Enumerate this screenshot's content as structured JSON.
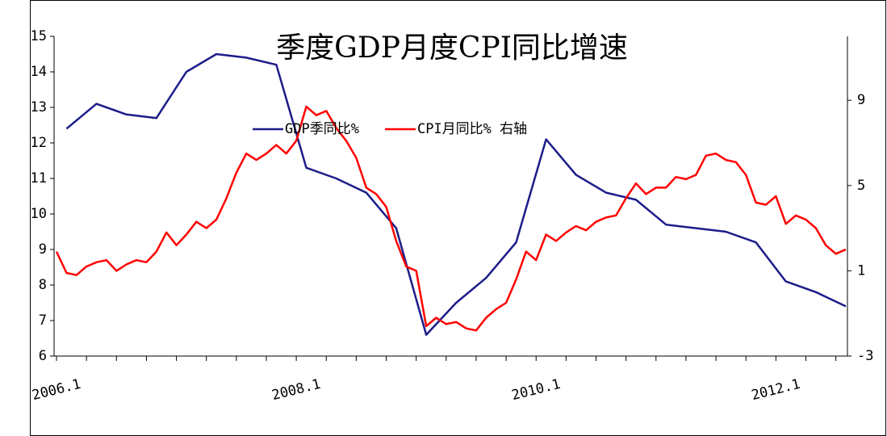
{
  "chart_data": {
    "type": "line",
    "title": "季度GDP月度CPI同比增速",
    "categories": [
      "2006.1",
      null,
      null,
      null,
      null,
      null,
      null,
      null,
      null,
      null,
      null,
      null,
      null,
      null,
      null,
      null,
      null,
      null,
      null,
      null,
      null,
      null,
      null,
      null,
      "2008.1",
      null,
      null,
      null,
      null,
      null,
      null,
      null,
      null,
      null,
      null,
      null,
      null,
      null,
      null,
      null,
      null,
      null,
      null,
      null,
      null,
      null,
      null,
      null,
      "2010.1",
      null,
      null,
      null,
      null,
      null,
      null,
      null,
      null,
      null,
      null,
      null,
      null,
      null,
      null,
      null,
      null,
      null,
      null,
      null,
      null,
      null,
      null,
      null,
      "2012.1",
      null,
      null,
      null,
      null,
      null,
      null,
      null
    ],
    "series": [
      {
        "name": "GDP季同比%",
        "color": "#1c1c8a",
        "values": [
          null,
          12.4,
          null,
          null,
          13.1,
          null,
          null,
          12.8,
          null,
          null,
          12.7,
          null,
          null,
          14.0,
          null,
          null,
          14.5,
          null,
          null,
          14.4,
          null,
          null,
          14.2,
          null,
          null,
          11.3,
          null,
          null,
          11.0,
          null,
          null,
          10.6,
          null,
          null,
          9.6,
          null,
          null,
          6.6,
          null,
          null,
          7.5,
          null,
          null,
          8.2,
          null,
          null,
          9.2,
          null,
          null,
          12.1,
          null,
          null,
          11.1,
          null,
          null,
          10.6,
          null,
          null,
          10.4,
          null,
          null,
          9.7,
          null,
          null,
          9.6,
          null,
          null,
          9.5,
          null,
          null,
          9.2,
          null,
          null,
          8.1,
          null,
          null,
          7.8,
          null,
          null,
          7.4
        ]
      },
      {
        "name": "CPI月同比% 右轴",
        "color": "#ff0000",
        "axis": "y2",
        "values": [
          1.9,
          0.9,
          0.8,
          1.2,
          1.4,
          1.5,
          1.0,
          1.3,
          1.5,
          1.4,
          1.9,
          2.8,
          2.2,
          2.7,
          3.3,
          3.0,
          3.4,
          4.4,
          5.6,
          6.5,
          6.2,
          6.5,
          6.9,
          6.5,
          7.1,
          8.7,
          8.3,
          8.5,
          7.7,
          7.1,
          6.3,
          4.9,
          4.6,
          4.0,
          2.4,
          1.2,
          1.0,
          -1.6,
          -1.2,
          -1.5,
          -1.4,
          -1.7,
          -1.8,
          -1.2,
          -0.8,
          -0.5,
          0.6,
          1.9,
          1.5,
          2.7,
          2.4,
          2.8,
          3.1,
          2.9,
          3.3,
          3.5,
          3.6,
          4.4,
          5.1,
          4.6,
          4.9,
          4.9,
          5.4,
          5.3,
          5.5,
          6.4,
          6.5,
          6.2,
          6.1,
          5.5,
          4.2,
          4.1,
          4.5,
          3.2,
          3.6,
          3.4,
          3.0,
          2.2,
          1.8,
          2.0
        ]
      }
    ],
    "span_gaps": true,
    "ylim": [
      6,
      15
    ],
    "yticks": [
      6,
      7,
      8,
      9,
      10,
      11,
      12,
      13,
      14,
      15
    ],
    "y2lim": [
      -3,
      12
    ],
    "y2ticks": [
      -3,
      1,
      5,
      9
    ],
    "legend": "center"
  }
}
